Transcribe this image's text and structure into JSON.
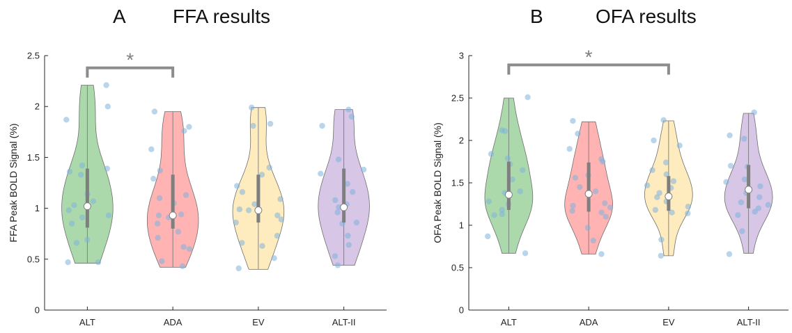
{
  "chart_data": [
    {
      "type": "violin",
      "panel_letter": "A",
      "title": "FFA results",
      "ylabel": "FFA Peak BOLD Signal (%)",
      "xlabel": "",
      "ylim": [
        0,
        2.5
      ],
      "yticks": [
        "0",
        "0.5",
        "1",
        "1.5",
        "2",
        "2.5"
      ],
      "ytick_values": [
        0,
        0.5,
        1,
        1.5,
        2,
        2.5
      ],
      "categories": [
        "ALT",
        "ADA",
        "EV",
        "ALT-II"
      ],
      "colors": [
        "#8fcc8f",
        "#ff9999",
        "#fde4a8",
        "#c9b3dd"
      ],
      "point_color": "#7fb2dc",
      "groups": [
        {
          "label": "ALT",
          "min": 0.46,
          "max": 2.21,
          "median": 1.02,
          "q1": 0.81,
          "q3": 1.39,
          "points": [
            2.21,
            2.0,
            1.87,
            1.42,
            1.39,
            1.36,
            1.33,
            1.14,
            1.07,
            1.03,
            0.98,
            0.93,
            0.91,
            0.85,
            0.69,
            0.66,
            0.47,
            0.47
          ]
        },
        {
          "label": "ADA",
          "min": 0.42,
          "max": 1.95,
          "median": 0.93,
          "q1": 0.8,
          "q3": 1.33,
          "points": [
            1.95,
            1.8,
            1.76,
            1.58,
            1.37,
            1.29,
            1.13,
            1.1,
            1.05,
            0.94,
            0.93,
            0.91,
            0.85,
            0.77,
            0.71,
            0.62,
            0.6,
            0.48,
            0.43
          ]
        },
        {
          "label": "EV",
          "min": 0.4,
          "max": 1.99,
          "median": 0.98,
          "q1": 0.86,
          "q3": 1.33,
          "points": [
            1.99,
            1.83,
            1.81,
            1.4,
            1.33,
            1.22,
            1.16,
            1.09,
            1.04,
            0.99,
            0.98,
            0.93,
            0.89,
            0.86,
            0.73,
            0.66,
            0.63,
            0.51,
            0.41
          ]
        },
        {
          "label": "ALT-II",
          "min": 0.44,
          "max": 1.97,
          "median": 1.01,
          "q1": 0.86,
          "q3": 1.39,
          "points": [
            1.97,
            1.9,
            1.81,
            1.48,
            1.38,
            1.34,
            1.24,
            1.16,
            1.08,
            1.04,
            1.01,
            0.96,
            0.86,
            0.85,
            0.73,
            0.64,
            0.53,
            0.44
          ]
        }
      ],
      "significance": {
        "from": 0,
        "to": 1,
        "y": 2.38,
        "label": "*"
      }
    },
    {
      "type": "violin",
      "panel_letter": "B",
      "title": "OFA results",
      "ylabel": "OFA Peak BOLD Signal (%)",
      "xlabel": "",
      "ylim": [
        0,
        3
      ],
      "yticks": [
        "0",
        "0.5",
        "1",
        "1.5",
        "2",
        "2.5",
        "3"
      ],
      "ytick_values": [
        0,
        0.5,
        1,
        1.5,
        2,
        2.5,
        3
      ],
      "categories": [
        "ALT",
        "ADA",
        "EV",
        "ALT-II"
      ],
      "colors": [
        "#8fcc8f",
        "#ff9999",
        "#fde4a8",
        "#c9b3dd"
      ],
      "point_color": "#7fb2dc",
      "groups": [
        {
          "label": "ALT",
          "min": 0.67,
          "max": 2.5,
          "median": 1.36,
          "q1": 1.18,
          "q3": 1.75,
          "points": [
            2.51,
            2.12,
            2.11,
            1.84,
            1.79,
            1.72,
            1.65,
            1.54,
            1.4,
            1.38,
            1.28,
            1.25,
            1.18,
            1.13,
            1.12,
            0.87,
            0.67
          ]
        },
        {
          "label": "ADA",
          "min": 0.66,
          "max": 2.22,
          "median": 1.37,
          "q1": 1.16,
          "q3": 1.74,
          "points": [
            2.23,
            2.08,
            1.9,
            1.78,
            1.75,
            1.59,
            1.56,
            1.45,
            1.4,
            1.26,
            1.23,
            1.21,
            1.17,
            1.15,
            1.1,
            0.97,
            0.82,
            0.66
          ]
        },
        {
          "label": "EV",
          "min": 0.64,
          "max": 2.23,
          "median": 1.34,
          "q1": 1.17,
          "q3": 1.58,
          "points": [
            2.24,
            2.0,
            1.94,
            1.74,
            1.65,
            1.6,
            1.52,
            1.47,
            1.44,
            1.38,
            1.33,
            1.28,
            1.22,
            1.18,
            1.15,
            1.14,
            0.83,
            0.64
          ]
        },
        {
          "label": "ALT-II",
          "min": 0.67,
          "max": 2.32,
          "median": 1.42,
          "q1": 1.2,
          "q3": 1.71,
          "points": [
            2.33,
            2.06,
            2.02,
            1.7,
            1.69,
            1.54,
            1.51,
            1.46,
            1.38,
            1.33,
            1.27,
            1.24,
            1.2,
            1.16,
            1.12,
            0.93,
            0.66
          ]
        }
      ],
      "significance": {
        "from": 0,
        "to": 2,
        "y": 2.89,
        "label": "*"
      }
    }
  ]
}
